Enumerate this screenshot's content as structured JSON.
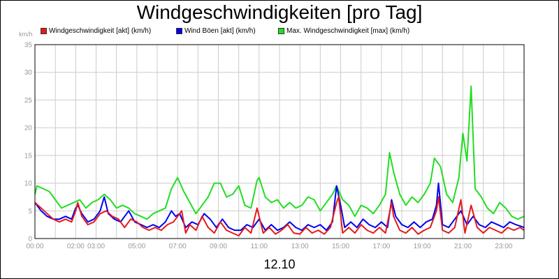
{
  "chart_data": {
    "type": "line",
    "title": "Windgeschwindigkeiten [pro Tag]",
    "unit_label": "km/h",
    "xlabel": "12.10",
    "ylim": [
      0,
      35
    ],
    "yticks": [
      "0",
      "5",
      "10",
      "15",
      "20",
      "25",
      "30",
      "35"
    ],
    "xlim_hours": [
      0,
      24
    ],
    "xticks": [
      {
        "label": "00:00",
        "hour": 0
      },
      {
        "label": "02:00",
        "hour": 2
      },
      {
        "label": "03:00",
        "hour": 3
      },
      {
        "label": "05:00",
        "hour": 5
      },
      {
        "label": "07:00",
        "hour": 7
      },
      {
        "label": "09:00",
        "hour": 9
      },
      {
        "label": "11:00",
        "hour": 11
      },
      {
        "label": "13:00",
        "hour": 13
      },
      {
        "label": "15:00",
        "hour": 15
      },
      {
        "label": "17:00",
        "hour": 17
      },
      {
        "label": "19:00",
        "hour": 19
      },
      {
        "label": "21:00",
        "hour": 21
      },
      {
        "label": "23:00",
        "hour": 23
      }
    ],
    "grid": true,
    "legend_position": "top",
    "series": [
      {
        "name": "Windgeschwindigkeit [akt] (km/h)",
        "color": "#e41a1c",
        "points": [
          [
            0.0,
            6.5
          ],
          [
            0.3,
            5.5
          ],
          [
            0.6,
            4.5
          ],
          [
            0.9,
            3.5
          ],
          [
            1.2,
            3.0
          ],
          [
            1.5,
            3.5
          ],
          [
            1.8,
            3.0
          ],
          [
            2.0,
            5.0
          ],
          [
            2.1,
            6.5
          ],
          [
            2.3,
            4.0
          ],
          [
            2.6,
            2.5
          ],
          [
            2.9,
            3.0
          ],
          [
            3.2,
            4.5
          ],
          [
            3.5,
            5.0
          ],
          [
            3.8,
            4.0
          ],
          [
            4.1,
            3.5
          ],
          [
            4.4,
            2.0
          ],
          [
            4.7,
            3.5
          ],
          [
            5.0,
            3.0
          ],
          [
            5.3,
            2.0
          ],
          [
            5.6,
            1.5
          ],
          [
            5.9,
            2.0
          ],
          [
            6.2,
            1.5
          ],
          [
            6.5,
            2.5
          ],
          [
            6.8,
            3.0
          ],
          [
            7.0,
            4.0
          ],
          [
            7.2,
            5.0
          ],
          [
            7.4,
            1.0
          ],
          [
            7.6,
            2.5
          ],
          [
            7.9,
            1.5
          ],
          [
            8.2,
            4.0
          ],
          [
            8.5,
            2.0
          ],
          [
            8.8,
            1.0
          ],
          [
            9.1,
            3.0
          ],
          [
            9.4,
            1.5
          ],
          [
            9.7,
            1.0
          ],
          [
            10.0,
            0.5
          ],
          [
            10.3,
            2.0
          ],
          [
            10.6,
            1.0
          ],
          [
            10.9,
            5.5
          ],
          [
            11.2,
            1.0
          ],
          [
            11.5,
            2.0
          ],
          [
            11.8,
            0.8
          ],
          [
            12.1,
            1.5
          ],
          [
            12.4,
            2.5
          ],
          [
            12.7,
            1.0
          ],
          [
            13.0,
            0.8
          ],
          [
            13.3,
            2.0
          ],
          [
            13.6,
            1.0
          ],
          [
            13.9,
            1.5
          ],
          [
            14.2,
            0.8
          ],
          [
            14.5,
            2.0
          ],
          [
            14.8,
            6.5
          ],
          [
            14.9,
            7.5
          ],
          [
            15.1,
            1.0
          ],
          [
            15.4,
            2.0
          ],
          [
            15.7,
            1.0
          ],
          [
            16.0,
            2.5
          ],
          [
            16.3,
            1.5
          ],
          [
            16.6,
            1.0
          ],
          [
            16.9,
            2.0
          ],
          [
            17.2,
            1.0
          ],
          [
            17.5,
            6.5
          ],
          [
            17.6,
            4.0
          ],
          [
            17.9,
            1.5
          ],
          [
            18.2,
            1.0
          ],
          [
            18.5,
            2.0
          ],
          [
            18.8,
            0.8
          ],
          [
            19.1,
            1.5
          ],
          [
            19.4,
            2.0
          ],
          [
            19.7,
            5.0
          ],
          [
            19.8,
            7.5
          ],
          [
            20.0,
            1.5
          ],
          [
            20.3,
            1.0
          ],
          [
            20.6,
            2.0
          ],
          [
            20.9,
            7.0
          ],
          [
            21.1,
            1.0
          ],
          [
            21.4,
            6.0
          ],
          [
            21.7,
            2.0
          ],
          [
            22.0,
            1.0
          ],
          [
            22.3,
            2.0
          ],
          [
            22.6,
            1.5
          ],
          [
            22.9,
            1.0
          ],
          [
            23.2,
            2.0
          ],
          [
            23.5,
            1.5
          ],
          [
            23.8,
            2.0
          ],
          [
            24.0,
            1.5
          ]
        ]
      },
      {
        "name": "Wind Böen [akt] (km/h)",
        "color": "#0000ee",
        "points": [
          [
            0.0,
            6.5
          ],
          [
            0.3,
            5.0
          ],
          [
            0.6,
            4.0
          ],
          [
            0.9,
            3.5
          ],
          [
            1.2,
            3.5
          ],
          [
            1.5,
            4.0
          ],
          [
            1.8,
            3.5
          ],
          [
            2.0,
            5.5
          ],
          [
            2.1,
            6.0
          ],
          [
            2.3,
            4.5
          ],
          [
            2.6,
            3.0
          ],
          [
            2.9,
            3.5
          ],
          [
            3.2,
            5.0
          ],
          [
            3.4,
            7.5
          ],
          [
            3.6,
            4.5
          ],
          [
            3.9,
            3.5
          ],
          [
            4.2,
            3.0
          ],
          [
            4.6,
            5.0
          ],
          [
            4.9,
            3.0
          ],
          [
            5.2,
            2.5
          ],
          [
            5.5,
            2.0
          ],
          [
            5.8,
            2.5
          ],
          [
            6.1,
            2.0
          ],
          [
            6.4,
            3.0
          ],
          [
            6.7,
            5.0
          ],
          [
            6.9,
            4.0
          ],
          [
            7.1,
            4.5
          ],
          [
            7.4,
            2.0
          ],
          [
            7.7,
            3.0
          ],
          [
            8.0,
            2.5
          ],
          [
            8.3,
            4.5
          ],
          [
            8.6,
            3.5
          ],
          [
            8.9,
            2.0
          ],
          [
            9.2,
            3.5
          ],
          [
            9.5,
            2.0
          ],
          [
            9.8,
            1.5
          ],
          [
            10.1,
            1.5
          ],
          [
            10.4,
            2.5
          ],
          [
            10.7,
            2.0
          ],
          [
            11.0,
            3.5
          ],
          [
            11.3,
            1.5
          ],
          [
            11.6,
            2.5
          ],
          [
            11.9,
            1.5
          ],
          [
            12.2,
            2.0
          ],
          [
            12.5,
            3.0
          ],
          [
            12.8,
            2.0
          ],
          [
            13.1,
            1.5
          ],
          [
            13.4,
            2.5
          ],
          [
            13.7,
            2.0
          ],
          [
            14.0,
            2.5
          ],
          [
            14.3,
            1.5
          ],
          [
            14.6,
            3.0
          ],
          [
            14.8,
            9.5
          ],
          [
            15.0,
            6.0
          ],
          [
            15.2,
            2.0
          ],
          [
            15.5,
            3.0
          ],
          [
            15.8,
            2.0
          ],
          [
            16.1,
            3.5
          ],
          [
            16.4,
            2.5
          ],
          [
            16.7,
            2.0
          ],
          [
            17.0,
            3.0
          ],
          [
            17.3,
            2.0
          ],
          [
            17.5,
            7.0
          ],
          [
            17.7,
            4.0
          ],
          [
            18.0,
            2.5
          ],
          [
            18.3,
            2.0
          ],
          [
            18.6,
            3.0
          ],
          [
            18.9,
            2.0
          ],
          [
            19.2,
            3.0
          ],
          [
            19.5,
            3.5
          ],
          [
            19.7,
            6.0
          ],
          [
            19.8,
            10.0
          ],
          [
            20.0,
            2.5
          ],
          [
            20.3,
            2.0
          ],
          [
            20.6,
            3.5
          ],
          [
            20.9,
            5.0
          ],
          [
            21.2,
            2.5
          ],
          [
            21.5,
            4.0
          ],
          [
            21.8,
            2.5
          ],
          [
            22.1,
            2.0
          ],
          [
            22.4,
            3.0
          ],
          [
            22.7,
            2.5
          ],
          [
            23.0,
            2.0
          ],
          [
            23.3,
            3.0
          ],
          [
            23.6,
            2.5
          ],
          [
            24.0,
            2.0
          ]
        ]
      },
      {
        "name": "Max. Windgeschwindigkeit [max] (km/h)",
        "color": "#22dd22",
        "points": [
          [
            0.0,
            8.0
          ],
          [
            0.1,
            9.5
          ],
          [
            0.4,
            9.0
          ],
          [
            0.7,
            8.5
          ],
          [
            1.0,
            7.0
          ],
          [
            1.3,
            5.5
          ],
          [
            1.6,
            6.0
          ],
          [
            1.9,
            6.5
          ],
          [
            2.2,
            7.0
          ],
          [
            2.5,
            5.5
          ],
          [
            2.8,
            6.5
          ],
          [
            3.1,
            7.0
          ],
          [
            3.4,
            8.0
          ],
          [
            3.7,
            7.0
          ],
          [
            4.0,
            5.5
          ],
          [
            4.3,
            6.0
          ],
          [
            4.6,
            5.5
          ],
          [
            4.9,
            4.5
          ],
          [
            5.2,
            4.0
          ],
          [
            5.5,
            3.5
          ],
          [
            5.8,
            4.5
          ],
          [
            6.1,
            5.0
          ],
          [
            6.4,
            5.5
          ],
          [
            6.7,
            9.0
          ],
          [
            7.0,
            11.0
          ],
          [
            7.3,
            8.5
          ],
          [
            7.6,
            6.5
          ],
          [
            7.9,
            4.5
          ],
          [
            8.2,
            6.0
          ],
          [
            8.5,
            7.5
          ],
          [
            8.8,
            10.0
          ],
          [
            9.1,
            10.0
          ],
          [
            9.4,
            7.5
          ],
          [
            9.7,
            8.0
          ],
          [
            10.0,
            9.5
          ],
          [
            10.3,
            6.0
          ],
          [
            10.6,
            5.5
          ],
          [
            10.9,
            10.5
          ],
          [
            11.0,
            11.0
          ],
          [
            11.3,
            7.5
          ],
          [
            11.6,
            6.5
          ],
          [
            11.9,
            7.0
          ],
          [
            12.2,
            5.5
          ],
          [
            12.5,
            6.5
          ],
          [
            12.8,
            5.5
          ],
          [
            13.1,
            6.0
          ],
          [
            13.4,
            7.5
          ],
          [
            13.7,
            7.0
          ],
          [
            14.0,
            5.0
          ],
          [
            14.3,
            6.5
          ],
          [
            14.6,
            8.0
          ],
          [
            14.8,
            9.5
          ],
          [
            15.1,
            7.0
          ],
          [
            15.4,
            6.0
          ],
          [
            15.7,
            4.0
          ],
          [
            16.0,
            6.0
          ],
          [
            16.3,
            5.5
          ],
          [
            16.6,
            4.5
          ],
          [
            16.9,
            6.0
          ],
          [
            17.2,
            8.0
          ],
          [
            17.4,
            15.5
          ],
          [
            17.6,
            12.0
          ],
          [
            17.9,
            8.0
          ],
          [
            18.2,
            6.0
          ],
          [
            18.5,
            7.5
          ],
          [
            18.8,
            6.5
          ],
          [
            19.1,
            8.0
          ],
          [
            19.4,
            10.0
          ],
          [
            19.6,
            14.5
          ],
          [
            19.9,
            13.0
          ],
          [
            20.2,
            8.0
          ],
          [
            20.5,
            6.5
          ],
          [
            20.8,
            11.0
          ],
          [
            21.0,
            19.0
          ],
          [
            21.2,
            14.0
          ],
          [
            21.4,
            27.5
          ],
          [
            21.6,
            9.0
          ],
          [
            21.9,
            7.5
          ],
          [
            22.2,
            5.5
          ],
          [
            22.5,
            4.5
          ],
          [
            22.8,
            6.5
          ],
          [
            23.1,
            5.5
          ],
          [
            23.4,
            4.0
          ],
          [
            23.7,
            3.5
          ],
          [
            24.0,
            4.0
          ]
        ]
      }
    ]
  }
}
